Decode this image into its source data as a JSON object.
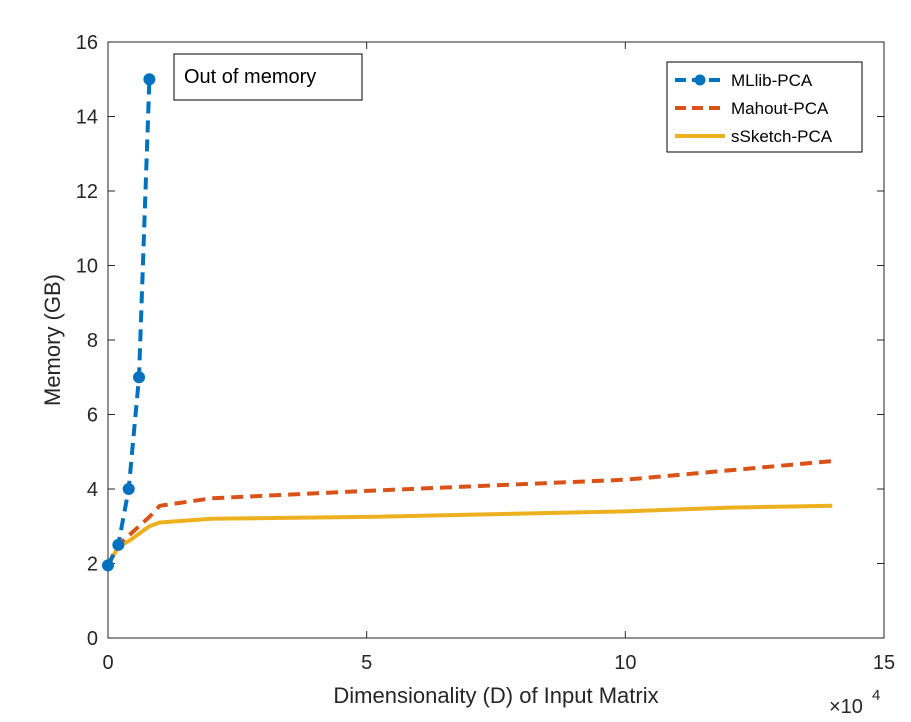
{
  "chart_data": {
    "type": "line",
    "xlabel": "Dimensionality (D) of Input Matrix",
    "ylabel": "Memory (GB)",
    "x_exponent_label": "×10",
    "x_exponent_power": "4",
    "xlim": [
      0,
      150000
    ],
    "ylim": [
      0,
      16
    ],
    "xticks": [
      0,
      50000,
      100000,
      150000
    ],
    "xtick_labels": [
      "0",
      "5",
      "10",
      "15"
    ],
    "yticks": [
      0,
      2,
      4,
      6,
      8,
      10,
      12,
      14,
      16
    ],
    "ytick_labels": [
      "0",
      "2",
      "4",
      "6",
      "8",
      "10",
      "12",
      "14",
      "16"
    ],
    "grid": false,
    "legend_position": "top-right",
    "annotation": "Out of memory",
    "series": [
      {
        "name": "MLlib-PCA",
        "color": "#0072BD",
        "style": "dashed-markers",
        "x": [
          0,
          2000,
          4000,
          6000,
          8000
        ],
        "y": [
          1.95,
          2.5,
          4.0,
          7.0,
          15.0
        ]
      },
      {
        "name": "Mahout-PCA",
        "color": "#D95319",
        "style": "dashed",
        "x": [
          0,
          2000,
          4000,
          6000,
          8000,
          10000,
          20000,
          50000,
          100000,
          140000
        ],
        "y": [
          1.95,
          2.5,
          2.75,
          3.0,
          3.25,
          3.55,
          3.75,
          3.95,
          4.25,
          4.75
        ]
      },
      {
        "name": "sSketch-PCA",
        "color": "#EDB120",
        "style": "solid",
        "x": [
          0,
          2000,
          4000,
          6000,
          8000,
          10000,
          20000,
          50000,
          100000,
          120000,
          140000
        ],
        "y": [
          1.95,
          2.45,
          2.6,
          2.8,
          3.0,
          3.1,
          3.2,
          3.25,
          3.4,
          3.5,
          3.55
        ]
      }
    ]
  }
}
